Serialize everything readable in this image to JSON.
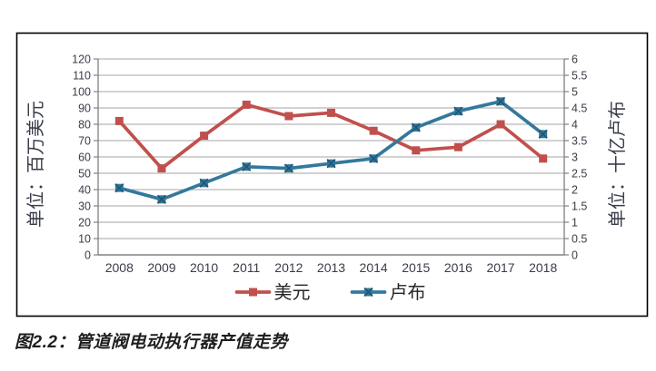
{
  "figure": {
    "caption": "图2.2：管道阀电动执行器产值走势"
  },
  "chart_data": {
    "type": "line",
    "title": "",
    "categories": [
      "2008",
      "2009",
      "2010",
      "2011",
      "2012",
      "2013",
      "2014",
      "2015",
      "2016",
      "2017",
      "2018"
    ],
    "series": [
      {
        "name": "美元",
        "axis": "left",
        "color": "#C0504D",
        "marker": "square",
        "values": [
          82,
          53,
          73,
          92,
          85,
          87,
          76,
          64,
          66,
          80,
          59
        ]
      },
      {
        "name": "卢布",
        "axis": "right",
        "color": "#34789C",
        "marker": "x",
        "marker_cross_color": "#1E5771",
        "values": [
          2.05,
          1.7,
          2.2,
          2.7,
          2.65,
          2.8,
          2.95,
          3.9,
          4.4,
          4.7,
          3.7
        ]
      }
    ],
    "left_axis": {
      "title": "单位：百万美元",
      "min": 0,
      "max": 120,
      "step": 10,
      "ticks": [
        "0",
        "10",
        "20",
        "30",
        "40",
        "50",
        "60",
        "70",
        "80",
        "90",
        "100",
        "110",
        "120"
      ]
    },
    "right_axis": {
      "title": "单位：十亿卢布",
      "min": 0,
      "max": 6,
      "step": 0.5,
      "ticks": [
        "0",
        "0.5",
        "1",
        "1.5",
        "2",
        "2.5",
        "3",
        "3.5",
        "4",
        "4.5",
        "5",
        "5.5",
        "6"
      ]
    },
    "legend": {
      "position": "bottom",
      "entries": [
        "美元",
        "卢布"
      ]
    },
    "grid": true,
    "colors": {
      "grid": "#A6A6A6",
      "axis": "#808080",
      "tick_label": "#3A3D4A",
      "frame_border": "#000000",
      "background": "#FFFFFF",
      "caption_text": "#1F1F1F"
    }
  }
}
